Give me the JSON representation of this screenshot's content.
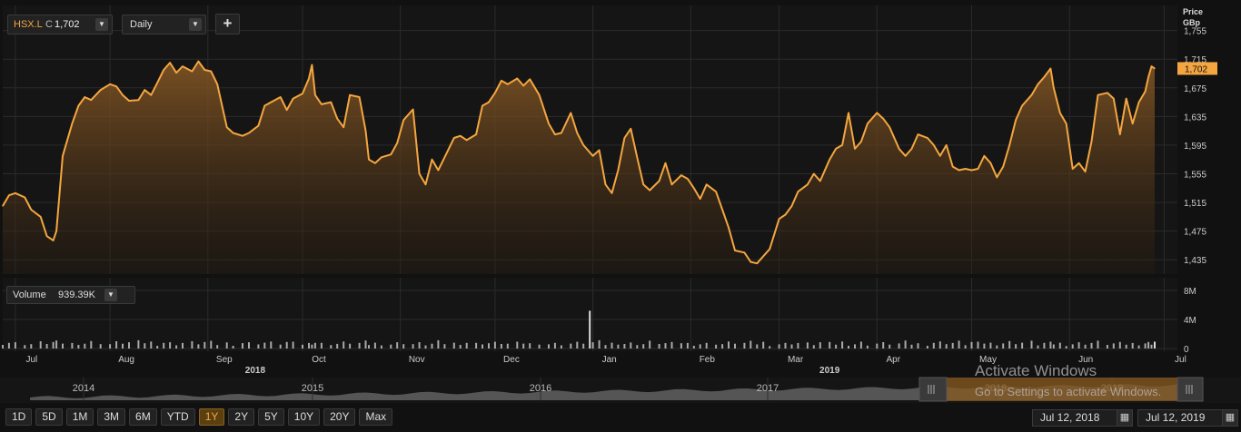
{
  "symbol": {
    "ticker": "HSX.L",
    "close_label": "C",
    "close_value": "1,702"
  },
  "interval": {
    "value": "Daily"
  },
  "add_button": "+",
  "price_axis": {
    "title": "Price",
    "unit": "GBp"
  },
  "volume": {
    "label": "Volume",
    "value": "939.39K"
  },
  "range_buttons": [
    "1D",
    "5D",
    "1M",
    "3M",
    "6M",
    "YTD",
    "1Y",
    "2Y",
    "5Y",
    "10Y",
    "20Y",
    "Max"
  ],
  "active_range": "1Y",
  "date_from": "Jul 12, 2018",
  "date_to": "Jul 12, 2019",
  "navigator_years": [
    "2014",
    "2015",
    "2016",
    "2017",
    "2018",
    "2019"
  ],
  "watermark": {
    "line1": "Activate Windows",
    "line2": "Go to Settings to activate Windows."
  },
  "colors": {
    "price_line": "#f4a640",
    "background": "#151515",
    "grid": "#2b2b2b",
    "volume_bar": "#aaaaaa"
  },
  "chart_data": {
    "type": "area",
    "title": "",
    "ylabel": "Price GBp",
    "ylim": [
      1415,
      1790
    ],
    "y_ticks": [
      1435,
      1475,
      1515,
      1555,
      1595,
      1635,
      1675,
      1715,
      1755
    ],
    "y_tick_labels": [
      "1,435",
      "1,475",
      "1,515",
      "1,555",
      "1,595",
      "1,635",
      "1,675",
      "1,715",
      "1,755"
    ],
    "last_value": 1702,
    "last_value_label": "1,702",
    "x_range": [
      "2018-07-12",
      "2019-07-12"
    ],
    "month_ticks": [
      {
        "label": "Jul",
        "date": "2018-07-16"
      },
      {
        "label": "Aug",
        "date": "2018-08-15"
      },
      {
        "label": "Sep",
        "date": "2018-09-15"
      },
      {
        "label": "Oct",
        "date": "2018-10-15"
      },
      {
        "label": "Nov",
        "date": "2018-11-15"
      },
      {
        "label": "Dec",
        "date": "2018-12-15"
      },
      {
        "label": "Jan",
        "date": "2019-01-15"
      },
      {
        "label": "Feb",
        "date": "2019-02-15"
      },
      {
        "label": "Mar",
        "date": "2019-03-15"
      },
      {
        "label": "Apr",
        "date": "2019-04-15"
      },
      {
        "label": "May",
        "date": "2019-05-15"
      },
      {
        "label": "Jun",
        "date": "2019-06-15"
      },
      {
        "label": "Jul",
        "date": "2019-07-15"
      }
    ],
    "year_labels": [
      {
        "label": "2018",
        "date": "2018-09-30"
      },
      {
        "label": "2019",
        "date": "2019-03-31"
      }
    ],
    "series": [
      {
        "values": [
          {
            "x": "2018-07-12",
            "y": 1510
          },
          {
            "x": "2018-07-14",
            "y": 1525
          },
          {
            "x": "2018-07-16",
            "y": 1528
          },
          {
            "x": "2018-07-19",
            "y": 1522
          },
          {
            "x": "2018-07-21",
            "y": 1505
          },
          {
            "x": "2018-07-24",
            "y": 1495
          },
          {
            "x": "2018-07-26",
            "y": 1468
          },
          {
            "x": "2018-07-28",
            "y": 1462
          },
          {
            "x": "2018-07-29",
            "y": 1475
          },
          {
            "x": "2018-07-31",
            "y": 1580
          },
          {
            "x": "2018-08-03",
            "y": 1625
          },
          {
            "x": "2018-08-05",
            "y": 1650
          },
          {
            "x": "2018-08-07",
            "y": 1662
          },
          {
            "x": "2018-08-09",
            "y": 1658
          },
          {
            "x": "2018-08-12",
            "y": 1672
          },
          {
            "x": "2018-08-15",
            "y": 1680
          },
          {
            "x": "2018-08-17",
            "y": 1677
          },
          {
            "x": "2018-08-19",
            "y": 1665
          },
          {
            "x": "2018-08-21",
            "y": 1657
          },
          {
            "x": "2018-08-24",
            "y": 1658
          },
          {
            "x": "2018-08-26",
            "y": 1672
          },
          {
            "x": "2018-08-28",
            "y": 1665
          },
          {
            "x": "2018-08-30",
            "y": 1682
          },
          {
            "x": "2018-09-01",
            "y": 1700
          },
          {
            "x": "2018-09-03",
            "y": 1710
          },
          {
            "x": "2018-09-05",
            "y": 1696
          },
          {
            "x": "2018-09-07",
            "y": 1705
          },
          {
            "x": "2018-09-10",
            "y": 1698
          },
          {
            "x": "2018-09-12",
            "y": 1712
          },
          {
            "x": "2018-09-14",
            "y": 1700
          },
          {
            "x": "2018-09-16",
            "y": 1698
          },
          {
            "x": "2018-09-18",
            "y": 1680
          },
          {
            "x": "2018-09-21",
            "y": 1620
          },
          {
            "x": "2018-09-23",
            "y": 1612
          },
          {
            "x": "2018-09-26",
            "y": 1608
          },
          {
            "x": "2018-09-28",
            "y": 1612
          },
          {
            "x": "2018-10-01",
            "y": 1622
          },
          {
            "x": "2018-10-03",
            "y": 1650
          },
          {
            "x": "2018-10-05",
            "y": 1655
          },
          {
            "x": "2018-10-08",
            "y": 1662
          },
          {
            "x": "2018-10-10",
            "y": 1644
          },
          {
            "x": "2018-10-12",
            "y": 1660
          },
          {
            "x": "2018-10-15",
            "y": 1667
          },
          {
            "x": "2018-10-17",
            "y": 1688
          },
          {
            "x": "2018-10-18",
            "y": 1707
          },
          {
            "x": "2018-10-19",
            "y": 1665
          },
          {
            "x": "2018-10-21",
            "y": 1652
          },
          {
            "x": "2018-10-24",
            "y": 1655
          },
          {
            "x": "2018-10-26",
            "y": 1632
          },
          {
            "x": "2018-10-28",
            "y": 1620
          },
          {
            "x": "2018-10-30",
            "y": 1665
          },
          {
            "x": "2018-11-02",
            "y": 1662
          },
          {
            "x": "2018-11-04",
            "y": 1615
          },
          {
            "x": "2018-11-05",
            "y": 1575
          },
          {
            "x": "2018-11-07",
            "y": 1570
          },
          {
            "x": "2018-11-09",
            "y": 1578
          },
          {
            "x": "2018-11-12",
            "y": 1582
          },
          {
            "x": "2018-11-14",
            "y": 1598
          },
          {
            "x": "2018-11-16",
            "y": 1630
          },
          {
            "x": "2018-11-19",
            "y": 1645
          },
          {
            "x": "2018-11-21",
            "y": 1555
          },
          {
            "x": "2018-11-23",
            "y": 1540
          },
          {
            "x": "2018-11-25",
            "y": 1575
          },
          {
            "x": "2018-11-27",
            "y": 1560
          },
          {
            "x": "2018-11-29",
            "y": 1578
          },
          {
            "x": "2018-12-02",
            "y": 1605
          },
          {
            "x": "2018-12-04",
            "y": 1608
          },
          {
            "x": "2018-12-06",
            "y": 1602
          },
          {
            "x": "2018-12-09",
            "y": 1610
          },
          {
            "x": "2018-12-11",
            "y": 1650
          },
          {
            "x": "2018-12-13",
            "y": 1655
          },
          {
            "x": "2018-12-15",
            "y": 1668
          },
          {
            "x": "2018-12-17",
            "y": 1685
          },
          {
            "x": "2018-12-19",
            "y": 1680
          },
          {
            "x": "2018-12-22",
            "y": 1688
          },
          {
            "x": "2018-12-24",
            "y": 1678
          },
          {
            "x": "2018-12-26",
            "y": 1687
          },
          {
            "x": "2018-12-29",
            "y": 1665
          },
          {
            "x": "2019-01-01",
            "y": 1625
          },
          {
            "x": "2019-01-03",
            "y": 1610
          },
          {
            "x": "2019-01-05",
            "y": 1612
          },
          {
            "x": "2019-01-08",
            "y": 1640
          },
          {
            "x": "2019-01-10",
            "y": 1612
          },
          {
            "x": "2019-01-12",
            "y": 1595
          },
          {
            "x": "2019-01-15",
            "y": 1580
          },
          {
            "x": "2019-01-17",
            "y": 1588
          },
          {
            "x": "2019-01-19",
            "y": 1540
          },
          {
            "x": "2019-01-21",
            "y": 1528
          },
          {
            "x": "2019-01-23",
            "y": 1560
          },
          {
            "x": "2019-01-25",
            "y": 1605
          },
          {
            "x": "2019-01-27",
            "y": 1618
          },
          {
            "x": "2019-01-29",
            "y": 1578
          },
          {
            "x": "2019-01-31",
            "y": 1540
          },
          {
            "x": "2019-02-02",
            "y": 1532
          },
          {
            "x": "2019-02-05",
            "y": 1545
          },
          {
            "x": "2019-02-07",
            "y": 1570
          },
          {
            "x": "2019-02-09",
            "y": 1540
          },
          {
            "x": "2019-02-12",
            "y": 1553
          },
          {
            "x": "2019-02-14",
            "y": 1548
          },
          {
            "x": "2019-02-16",
            "y": 1535
          },
          {
            "x": "2019-02-18",
            "y": 1520
          },
          {
            "x": "2019-02-20",
            "y": 1540
          },
          {
            "x": "2019-02-23",
            "y": 1530
          },
          {
            "x": "2019-02-25",
            "y": 1505
          },
          {
            "x": "2019-02-27",
            "y": 1480
          },
          {
            "x": "2019-03-01",
            "y": 1448
          },
          {
            "x": "2019-03-04",
            "y": 1445
          },
          {
            "x": "2019-03-06",
            "y": 1432
          },
          {
            "x": "2019-03-08",
            "y": 1430
          },
          {
            "x": "2019-03-10",
            "y": 1440
          },
          {
            "x": "2019-03-12",
            "y": 1450
          },
          {
            "x": "2019-03-15",
            "y": 1492
          },
          {
            "x": "2019-03-17",
            "y": 1498
          },
          {
            "x": "2019-03-19",
            "y": 1510
          },
          {
            "x": "2019-03-21",
            "y": 1530
          },
          {
            "x": "2019-03-24",
            "y": 1540
          },
          {
            "x": "2019-03-26",
            "y": 1555
          },
          {
            "x": "2019-03-28",
            "y": 1545
          },
          {
            "x": "2019-03-31",
            "y": 1575
          },
          {
            "x": "2019-04-02",
            "y": 1590
          },
          {
            "x": "2019-04-04",
            "y": 1595
          },
          {
            "x": "2019-04-06",
            "y": 1640
          },
          {
            "x": "2019-04-08",
            "y": 1590
          },
          {
            "x": "2019-04-10",
            "y": 1600
          },
          {
            "x": "2019-04-12",
            "y": 1625
          },
          {
            "x": "2019-04-15",
            "y": 1640
          },
          {
            "x": "2019-04-17",
            "y": 1632
          },
          {
            "x": "2019-04-19",
            "y": 1620
          },
          {
            "x": "2019-04-22",
            "y": 1590
          },
          {
            "x": "2019-04-24",
            "y": 1580
          },
          {
            "x": "2019-04-26",
            "y": 1590
          },
          {
            "x": "2019-04-28",
            "y": 1610
          },
          {
            "x": "2019-05-01",
            "y": 1605
          },
          {
            "x": "2019-05-03",
            "y": 1595
          },
          {
            "x": "2019-05-05",
            "y": 1580
          },
          {
            "x": "2019-05-07",
            "y": 1595
          },
          {
            "x": "2019-05-09",
            "y": 1565
          },
          {
            "x": "2019-05-11",
            "y": 1560
          },
          {
            "x": "2019-05-13",
            "y": 1562
          },
          {
            "x": "2019-05-15",
            "y": 1560
          },
          {
            "x": "2019-05-17",
            "y": 1562
          },
          {
            "x": "2019-05-19",
            "y": 1580
          },
          {
            "x": "2019-05-21",
            "y": 1570
          },
          {
            "x": "2019-05-23",
            "y": 1550
          },
          {
            "x": "2019-05-25",
            "y": 1565
          },
          {
            "x": "2019-05-27",
            "y": 1595
          },
          {
            "x": "2019-05-29",
            "y": 1630
          },
          {
            "x": "2019-05-31",
            "y": 1650
          },
          {
            "x": "2019-06-03",
            "y": 1665
          },
          {
            "x": "2019-06-05",
            "y": 1680
          },
          {
            "x": "2019-06-07",
            "y": 1690
          },
          {
            "x": "2019-06-09",
            "y": 1702
          },
          {
            "x": "2019-06-10",
            "y": 1675
          },
          {
            "x": "2019-06-12",
            "y": 1640
          },
          {
            "x": "2019-06-14",
            "y": 1625
          },
          {
            "x": "2019-06-16",
            "y": 1562
          },
          {
            "x": "2019-06-18",
            "y": 1570
          },
          {
            "x": "2019-06-20",
            "y": 1558
          },
          {
            "x": "2019-06-22",
            "y": 1600
          },
          {
            "x": "2019-06-24",
            "y": 1665
          },
          {
            "x": "2019-06-27",
            "y": 1668
          },
          {
            "x": "2019-06-29",
            "y": 1660
          },
          {
            "x": "2019-07-01",
            "y": 1610
          },
          {
            "x": "2019-07-03",
            "y": 1660
          },
          {
            "x": "2019-07-05",
            "y": 1625
          },
          {
            "x": "2019-07-07",
            "y": 1655
          },
          {
            "x": "2019-07-09",
            "y": 1670
          },
          {
            "x": "2019-07-10",
            "y": 1690
          },
          {
            "x": "2019-07-11",
            "y": 1705
          },
          {
            "x": "2019-07-12",
            "y": 1702
          }
        ]
      }
    ],
    "volume": {
      "ylim": [
        0,
        9000000
      ],
      "y_ticks": [
        0,
        4000000,
        8000000
      ],
      "y_tick_labels": [
        "0",
        "4M",
        "8M"
      ],
      "last_value": 939390,
      "spike": {
        "x": "2019-01-14",
        "y": 5200000
      }
    }
  }
}
